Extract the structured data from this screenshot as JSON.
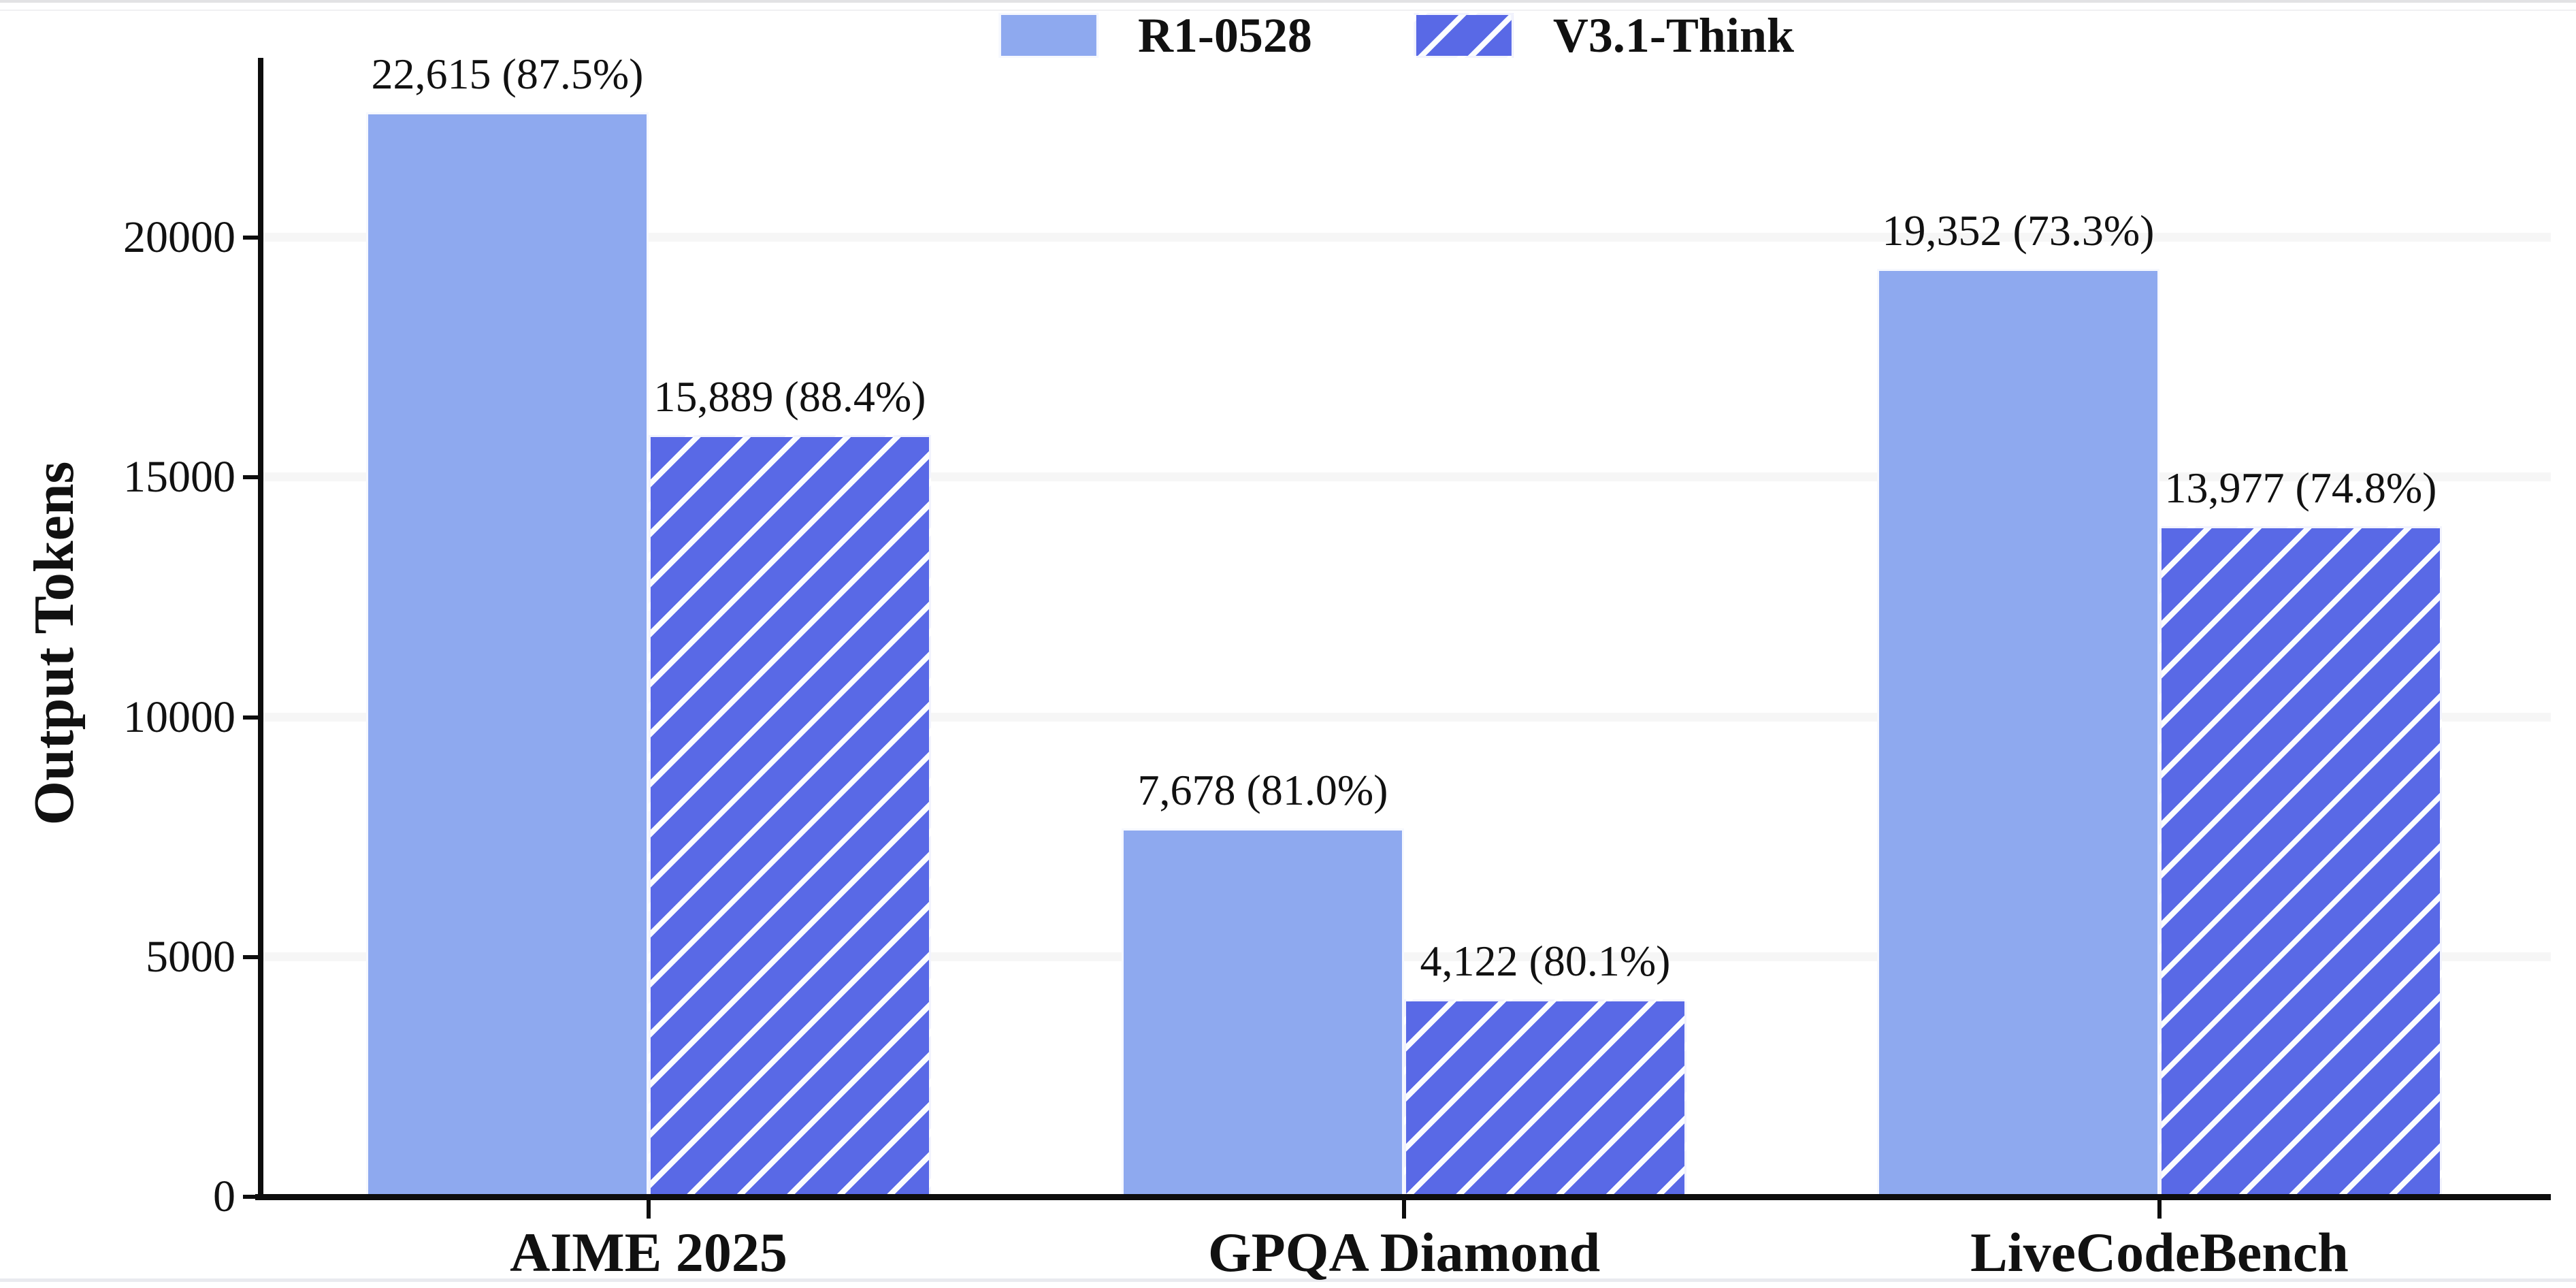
{
  "chart_data": {
    "type": "bar",
    "title": "",
    "categories": [
      "AIME 2025",
      "GPQA Diamond",
      "LiveCodeBench"
    ],
    "series": [
      {
        "name": "R1-0528",
        "pattern": "solid",
        "color": "#8ea9ef",
        "values": [
          22615,
          7678,
          19352
        ],
        "data_labels": [
          "22,615 (87.5%)",
          "7,678 (81.0%)",
          "19,352 (73.3%)"
        ]
      },
      {
        "name": "V3.1-Think",
        "pattern": "diagonal-hatch",
        "color": "#5969e6",
        "hatch_color": "#ffffff",
        "values": [
          15889,
          4122,
          13977
        ],
        "data_labels": [
          "15,889 (88.4%)",
          "4,122 (80.1%)",
          "13,977 (74.8%)"
        ]
      }
    ],
    "xlabel": "",
    "ylabel": "Output Tokens",
    "yticks": [
      0,
      5000,
      10000,
      15000,
      20000
    ],
    "ytick_labels": [
      "0",
      "5000",
      "10000",
      "15000",
      "20000"
    ],
    "ylim": [
      0,
      23750
    ],
    "grid": "horizontal",
    "gridline_color": "#f6f6f6",
    "legend_position": "top-center",
    "axis_color": "#0d0d0d",
    "text_color": "#111111",
    "background": "#ffffff"
  }
}
